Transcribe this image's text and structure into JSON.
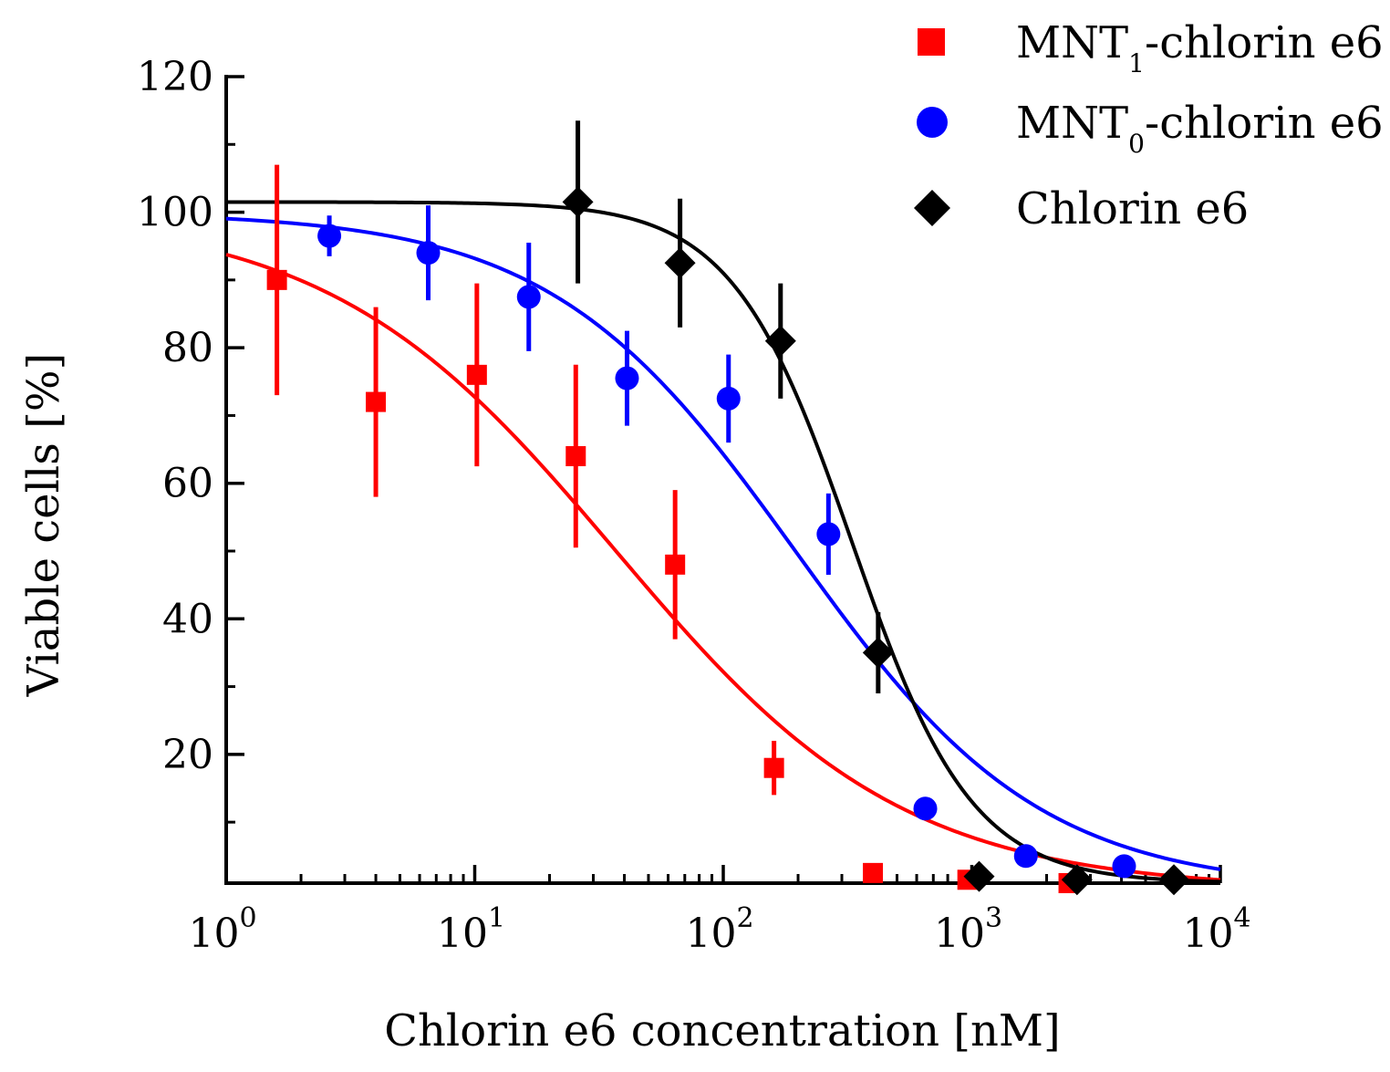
{
  "chart_data": {
    "type": "scatter",
    "x_scale": "log",
    "xlim": [
      1,
      10000
    ],
    "ylim": [
      1,
      120
    ],
    "xlabel": "Chlorin e6 concentration [nM]",
    "ylabel": "Viable cells [%]",
    "x_ticks": [
      {
        "value": 1,
        "base": "10",
        "exp": "0"
      },
      {
        "value": 10,
        "base": "10",
        "exp": "1"
      },
      {
        "value": 100,
        "base": "10",
        "exp": "2"
      },
      {
        "value": 1000,
        "base": "10",
        "exp": "3"
      },
      {
        "value": 10000,
        "base": "10",
        "exp": "4"
      }
    ],
    "y_ticks": [
      {
        "value": 20,
        "label": "20"
      },
      {
        "value": 40,
        "label": "40"
      },
      {
        "value": 60,
        "label": "60"
      },
      {
        "value": 80,
        "label": "80"
      },
      {
        "value": 100,
        "label": "100"
      },
      {
        "value": 120,
        "label": "120"
      }
    ],
    "legend_position": "top-right",
    "series": [
      {
        "name": "MNT1-chlorin e6",
        "legend_main": "MNT",
        "legend_sub": "1",
        "legend_rest": "-chlorin e6",
        "color": "#ff0000",
        "marker": "square",
        "points": [
          {
            "x": 1.6,
            "y": 90,
            "err": 17
          },
          {
            "x": 4.0,
            "y": 72,
            "err": 14
          },
          {
            "x": 10.2,
            "y": 76,
            "err": 13.5
          },
          {
            "x": 25.5,
            "y": 64,
            "err": 13.5
          },
          {
            "x": 64,
            "y": 48,
            "err": 11
          },
          {
            "x": 160,
            "y": 18,
            "err": 4
          },
          {
            "x": 400,
            "y": 2.5,
            "err": 0
          },
          {
            "x": 960,
            "y": 1.5,
            "err": 0
          },
          {
            "x": 2450,
            "y": 1,
            "err": 0
          }
        ],
        "fit": {
          "top": 100,
          "bottom": 0,
          "ec50": 37,
          "hill": 0.75
        }
      },
      {
        "name": "MNT0-chlorin e6",
        "legend_main": "MNT",
        "legend_sub": "0",
        "legend_rest": "-chlorin e6",
        "color": "#0000ff",
        "marker": "circle",
        "points": [
          {
            "x": 2.6,
            "y": 96.5,
            "err": 3
          },
          {
            "x": 6.5,
            "y": 94,
            "err": 7
          },
          {
            "x": 16.5,
            "y": 87.5,
            "err": 8
          },
          {
            "x": 41,
            "y": 75.5,
            "err": 7
          },
          {
            "x": 105,
            "y": 72.5,
            "err": 6.5
          },
          {
            "x": 265,
            "y": 52.5,
            "err": 6
          },
          {
            "x": 650,
            "y": 12,
            "err": 1.5
          },
          {
            "x": 1650,
            "y": 5,
            "err": 1
          },
          {
            "x": 4100,
            "y": 3.5,
            "err": 1
          }
        ],
        "fit": {
          "top": 100,
          "bottom": 0,
          "ec50": 195,
          "hill": 0.88
        }
      },
      {
        "name": "Chlorin e6",
        "legend_main": "Chlorin e6",
        "legend_sub": "",
        "legend_rest": "",
        "color": "#000000",
        "marker": "diamond",
        "points": [
          {
            "x": 26,
            "y": 101.5,
            "err": 12
          },
          {
            "x": 67,
            "y": 92.5,
            "err": 9.5
          },
          {
            "x": 170,
            "y": 81,
            "err": 8.5
          },
          {
            "x": 420,
            "y": 35,
            "err": 6
          },
          {
            "x": 1070,
            "y": 2,
            "err": 0
          },
          {
            "x": 2650,
            "y": 1.5,
            "err": 0
          },
          {
            "x": 6500,
            "y": 1.5,
            "err": 0
          }
        ],
        "fit": {
          "top": 101.5,
          "bottom": 1,
          "ec50": 330,
          "hill": 1.8
        }
      }
    ]
  }
}
